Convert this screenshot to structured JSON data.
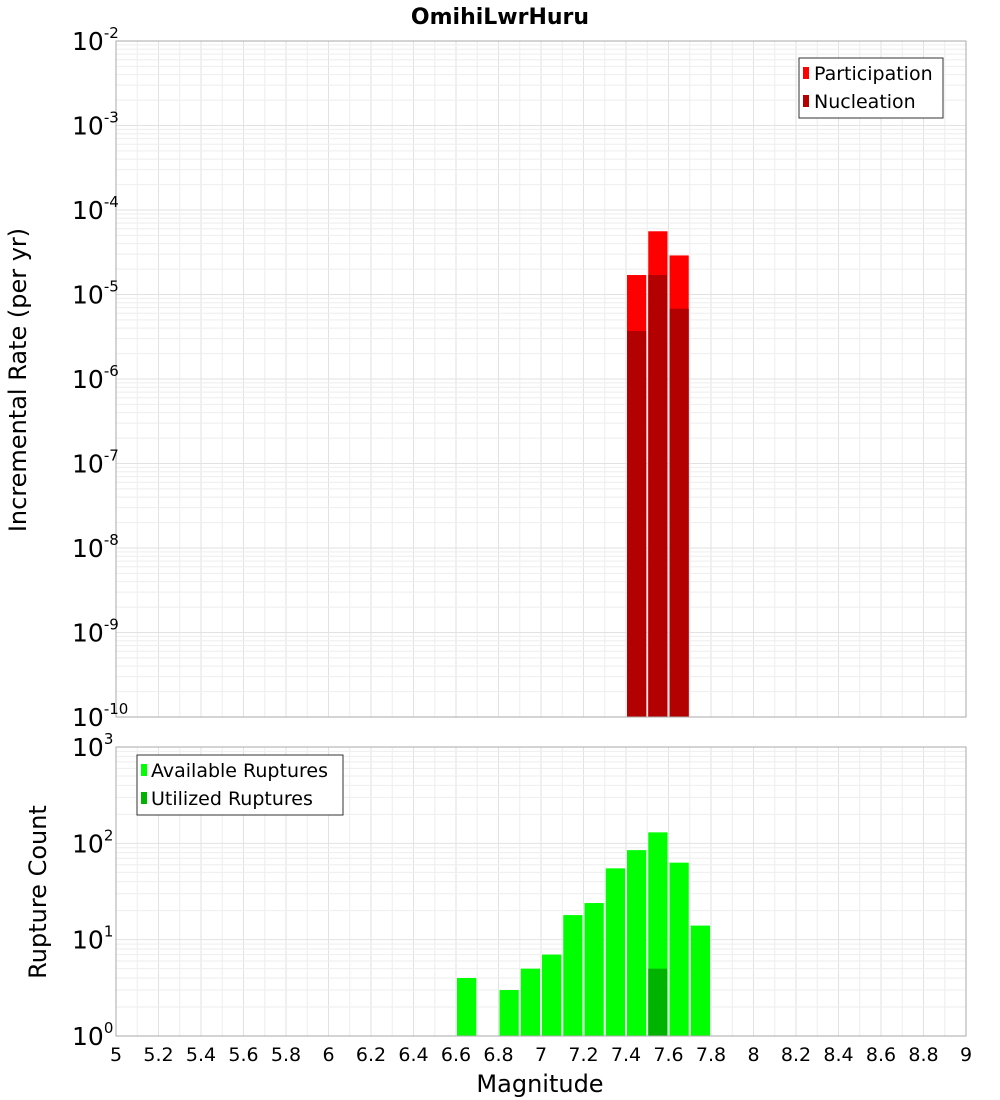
{
  "chart_data": [
    {
      "type": "bar",
      "title": "OmihiLwrHuru",
      "xlabel": "Magnitude",
      "ylabel": "Incremental Rate (per yr)",
      "yscale": "log",
      "ylim_exp": [
        -10,
        -2
      ],
      "xlim": [
        5,
        9
      ],
      "bin_width": 0.1,
      "x": [
        7.45,
        7.55,
        7.65
      ],
      "series": [
        {
          "name": "Participation",
          "color": "#ff0000",
          "values": [
            1.7e-05,
            5.6e-05,
            2.9e-05
          ]
        },
        {
          "name": "Nucleation",
          "color": "#b30000",
          "values": [
            3.7e-06,
            1.7e-05,
            6.8e-06
          ]
        }
      ],
      "legend_position": "top-right"
    },
    {
      "type": "bar",
      "xlabel": "Magnitude",
      "ylabel": "Rupture Count",
      "yscale": "log",
      "ylim_exp": [
        0,
        3
      ],
      "xlim": [
        5,
        9
      ],
      "bin_width": 0.1,
      "x_ticks": [
        "5",
        "5.2",
        "5.4",
        "5.6",
        "5.8",
        "6",
        "6.2",
        "6.4",
        "6.6",
        "6.8",
        "7",
        "7.2",
        "7.4",
        "7.6",
        "7.8",
        "8",
        "8.2",
        "8.4",
        "8.6",
        "8.8",
        "9"
      ],
      "series": [
        {
          "name": "Available Ruptures",
          "color": "#00ff00",
          "x": [
            6.65,
            6.85,
            6.95,
            7.05,
            7.15,
            7.25,
            7.35,
            7.45,
            7.55,
            7.65,
            7.75
          ],
          "values": [
            4,
            3,
            5,
            7,
            18,
            24,
            55,
            85,
            130,
            63,
            14
          ]
        },
        {
          "name": "Utilized Ruptures",
          "color": "#00b300",
          "x": [
            7.45,
            7.55,
            7.65
          ],
          "values": [
            1,
            5,
            1
          ]
        }
      ],
      "legend_position": "top-left"
    }
  ]
}
